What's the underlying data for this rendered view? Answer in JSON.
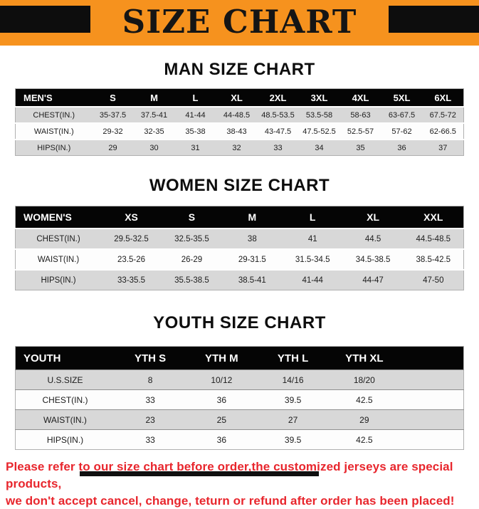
{
  "banner": {
    "title": "SIZE CHART"
  },
  "sections": [
    {
      "heading": "MAN SIZE CHART",
      "table": {
        "header": [
          "MEN'S",
          "S",
          "M",
          "L",
          "XL",
          "2XL",
          "3XL",
          "4XL",
          "5XL",
          "6XL"
        ],
        "rows": [
          [
            "CHEST(IN.)",
            "35-37.5",
            "37.5-41",
            "41-44",
            "44-48.5",
            "48.5-53.5",
            "53.5-58",
            "58-63",
            "63-67.5",
            "67.5-72"
          ],
          [
            "WAIST(IN.)",
            "29-32",
            "32-35",
            "35-38",
            "38-43",
            "43-47.5",
            "47.5-52.5",
            "52.5-57",
            "57-62",
            "62-66.5"
          ],
          [
            "HIPS(IN.)",
            "29",
            "30",
            "31",
            "32",
            "33",
            "34",
            "35",
            "36",
            "37"
          ]
        ]
      }
    },
    {
      "heading": "WOMEN SIZE CHART",
      "table": {
        "header": [
          "WOMEN'S",
          "XS",
          "S",
          "M",
          "L",
          "XL",
          "XXL"
        ],
        "rows": [
          [
            "CHEST(IN.)",
            "29.5-32.5",
            "32.5-35.5",
            "38",
            "41",
            "44.5",
            "44.5-48.5"
          ],
          [
            "WAIST(IN.)",
            "23.5-26",
            "26-29",
            "29-31.5",
            "31.5-34.5",
            "34.5-38.5",
            "38.5-42.5"
          ],
          [
            "HIPS(IN.)",
            "33-35.5",
            "35.5-38.5",
            "38.5-41",
            "41-44",
            "44-47",
            "47-50"
          ]
        ]
      }
    },
    {
      "heading": "YOUTH SIZE CHART",
      "table": {
        "header": [
          "YOUTH",
          "YTH S",
          "YTH M",
          "YTH L",
          "YTH XL",
          ""
        ],
        "rows": [
          [
            "U.S.SIZE",
            "8",
            "10/12",
            "14/16",
            "18/20",
            ""
          ],
          [
            "CHEST(IN.)",
            "33",
            "36",
            "39.5",
            "42.5",
            ""
          ],
          [
            "WAIST(IN.)",
            "23",
            "25",
            "27",
            "29",
            ""
          ],
          [
            "HIPS(IN.)",
            "33",
            "36",
            "39.5",
            "42.5",
            ""
          ]
        ]
      }
    }
  ],
  "footer": {
    "line1": "Please refer to our size chart before order,the customized jerseys are special products,",
    "line2": "we don't accept cancel, change, teturn or refund after order has been placed!"
  },
  "colors": {
    "banner_bg": "#F6921E",
    "table_header_bg": "#050505",
    "row_alt": "#D8D8D8",
    "footer_text": "#E8262D"
  }
}
